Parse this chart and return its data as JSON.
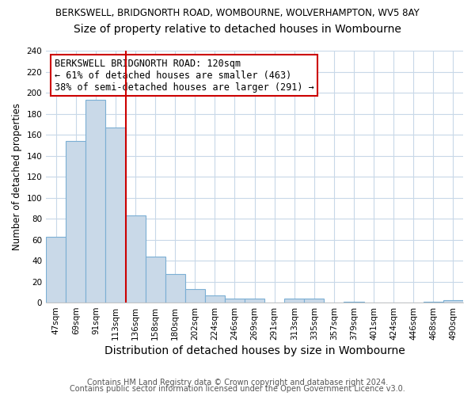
{
  "title": "BERKSWELL, BRIDGNORTH ROAD, WOMBOURNE, WOLVERHAMPTON, WV5 8AY",
  "subtitle": "Size of property relative to detached houses in Wombourne",
  "xlabel": "Distribution of detached houses by size in Wombourne",
  "ylabel": "Number of detached properties",
  "bar_labels": [
    "47sqm",
    "69sqm",
    "91sqm",
    "113sqm",
    "136sqm",
    "158sqm",
    "180sqm",
    "202sqm",
    "224sqm",
    "246sqm",
    "269sqm",
    "291sqm",
    "313sqm",
    "335sqm",
    "357sqm",
    "379sqm",
    "401sqm",
    "424sqm",
    "446sqm",
    "468sqm",
    "490sqm"
  ],
  "bar_heights": [
    63,
    154,
    193,
    167,
    83,
    44,
    27,
    13,
    7,
    4,
    4,
    0,
    4,
    4,
    0,
    1,
    0,
    0,
    0,
    1,
    2
  ],
  "bar_color": "#c9d9e8",
  "bar_edge_color": "#7bafd4",
  "vline_color": "#cc0000",
  "annotation_text": "BERKSWELL BRIDGNORTH ROAD: 120sqm\n← 61% of detached houses are smaller (463)\n38% of semi-detached houses are larger (291) →",
  "annotation_box_color": "#ffffff",
  "annotation_box_edge_color": "#cc0000",
  "ylim": [
    0,
    240
  ],
  "yticks": [
    0,
    20,
    40,
    60,
    80,
    100,
    120,
    140,
    160,
    180,
    200,
    220,
    240
  ],
  "footer1": "Contains HM Land Registry data © Crown copyright and database right 2024.",
  "footer2": "Contains public sector information licensed under the Open Government Licence v3.0.",
  "bg_color": "#ffffff",
  "plot_bg_color": "#ffffff",
  "grid_color": "#c8d8e8",
  "title_fontsize": 8.5,
  "subtitle_fontsize": 10,
  "xlabel_fontsize": 10,
  "ylabel_fontsize": 8.5,
  "tick_fontsize": 7.5,
  "footer_fontsize": 7,
  "annotation_fontsize": 8.5
}
